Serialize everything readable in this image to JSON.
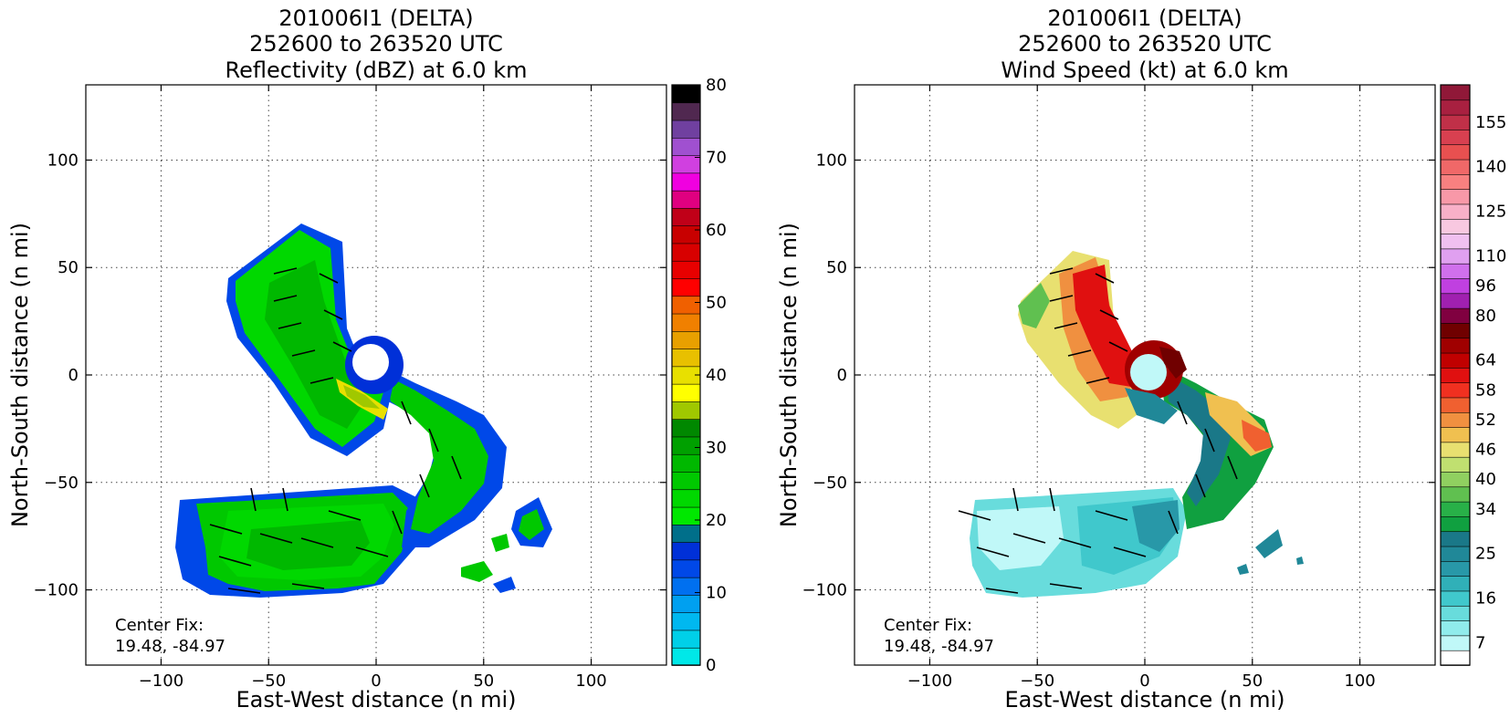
{
  "panels": [
    {
      "title_lines": [
        "201006I1 (DELTA)",
        "252600 to 263520 UTC",
        "Reflectivity (dBZ) at 6.0 km"
      ],
      "center_fix": [
        "Center Fix:",
        "19.48, -84.97"
      ]
    },
    {
      "title_lines": [
        "201006I1 (DELTA)",
        "252600 to 263520 UTC",
        "Wind Speed (kt) at 6.0 km"
      ],
      "center_fix": [
        "Center Fix:",
        "19.48, -84.97"
      ]
    }
  ],
  "colors": {
    "reflectivity": [
      "#00e8e8",
      "#00d0e8",
      "#00b8f0",
      "#00a0f0",
      "#0070f0",
      "#0048e8",
      "#0030d8",
      "#006f8a",
      "#00e800",
      "#00d800",
      "#00c800",
      "#00b800",
      "#00a000",
      "#008800",
      "#a0c800",
      "#ffff00",
      "#e8e000",
      "#e8c000",
      "#e8a000",
      "#f08000",
      "#f06000",
      "#ff0000",
      "#e80000",
      "#d80000",
      "#c80000",
      "#c00018",
      "#e00080",
      "#f000e0",
      "#d040e0",
      "#a050d0",
      "#7040a0",
      "#502850",
      "#000000"
    ],
    "wind": [
      "#ffffff",
      "#c0f8f8",
      "#90ecec",
      "#68dcdc",
      "#40c8cc",
      "#30b0b8",
      "#2898a8",
      "#208898",
      "#1a7888",
      "#10a040",
      "#28b048",
      "#60c050",
      "#90d060",
      "#c0e070",
      "#e8e070",
      "#f0c050",
      "#f09040",
      "#f06030",
      "#f03020",
      "#e01010",
      "#c00000",
      "#a00000",
      "#700000",
      "#800040",
      "#a020b0",
      "#c040e0",
      "#d070ec",
      "#e0a0f0",
      "#f0c0f0",
      "#f8c8e0",
      "#f8b0c8",
      "#f898a8",
      "#f88080",
      "#f06868",
      "#e85050",
      "#d84050",
      "#c03048",
      "#a82040",
      "#901838"
    ]
  },
  "chart_data": [
    {
      "type": "heatmap",
      "title": "201006I1 (DELTA)\n252600 to 263520 UTC\nReflectivity (dBZ) at 6.0 km",
      "xlabel": "East-West distance (n mi)",
      "ylabel": "North-South distance (n mi)",
      "xlim": [
        -135,
        135
      ],
      "ylim": [
        -135,
        135
      ],
      "x_ticks": [
        -100,
        -50,
        0,
        50,
        100
      ],
      "y_ticks": [
        100,
        50,
        0,
        -50,
        -100
      ],
      "x_tick_labels": [
        "−100",
        "−50",
        "0",
        "50",
        "100"
      ],
      "y_tick_labels": [
        "100",
        "50",
        "0",
        "−50",
        "−100"
      ],
      "grid": true,
      "colorbar": {
        "range": [
          0,
          80
        ],
        "levels": 33,
        "ticks": [
          0,
          10,
          20,
          30,
          40,
          50,
          60,
          70,
          80
        ],
        "tick_labels": [
          "0",
          "10",
          "20",
          "30",
          "40",
          "50",
          "60",
          "70",
          "80"
        ]
      },
      "annotation": "Center Fix: 19.48, -84.97"
    },
    {
      "type": "heatmap",
      "title": "201006I1 (DELTA)\n252600 to 263520 UTC\nWind Speed (kt) at 6.0 km",
      "xlabel": "East-West distance (n mi)",
      "ylabel": "North-South distance (n mi)",
      "xlim": [
        -135,
        135
      ],
      "ylim": [
        -135,
        135
      ],
      "x_ticks": [
        -100,
        -50,
        0,
        50,
        100
      ],
      "y_ticks": [
        100,
        50,
        0,
        -50,
        -100
      ],
      "x_tick_labels": [
        "−100",
        "−50",
        "0",
        "50",
        "100"
      ],
      "y_tick_labels": [
        "100",
        "50",
        "0",
        "−50",
        "−100"
      ],
      "grid": true,
      "colorbar": {
        "levels": 39,
        "ticks": [
          "7",
          "16",
          "25",
          "34",
          "40",
          "46",
          "52",
          "58",
          "64",
          "80",
          "96",
          "110",
          "125",
          "140",
          "155"
        ],
        "tick_level_index": [
          1,
          4,
          7,
          10,
          12,
          14,
          16,
          18,
          20,
          23,
          25,
          27,
          30,
          33,
          36
        ]
      },
      "annotation": "Center Fix: 19.48, -84.97"
    }
  ]
}
